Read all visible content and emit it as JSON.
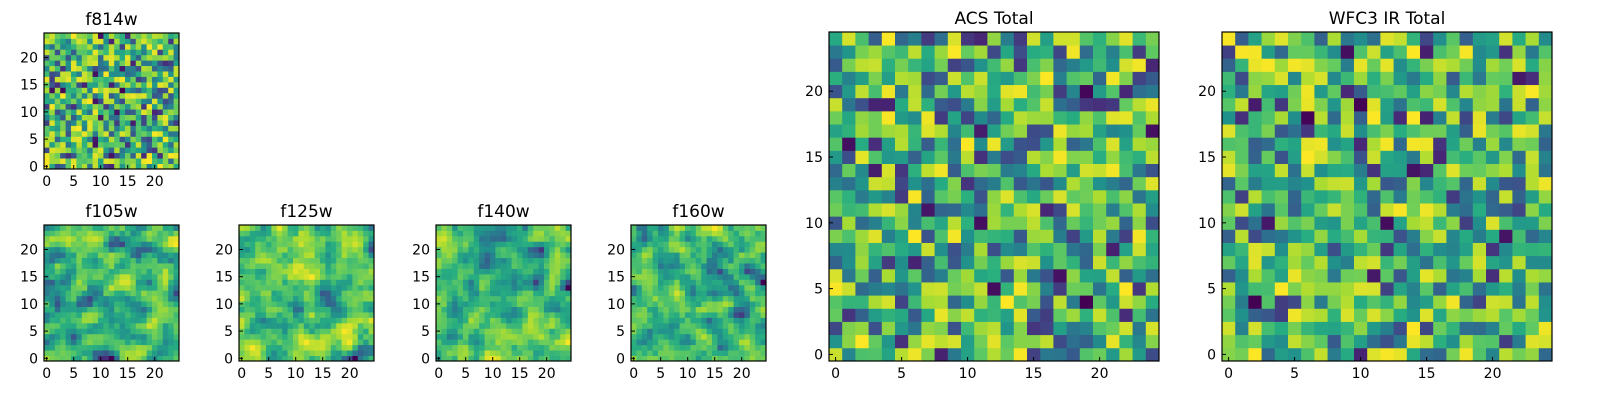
{
  "chart_data": [
    {
      "type": "heatmap",
      "title": "f814w",
      "rows": 25,
      "cols": 25,
      "colormap": "viridis",
      "x_ticks": [
        "0",
        "5",
        "10",
        "15",
        "20"
      ],
      "y_ticks": [
        "0",
        "5",
        "10",
        "15",
        "20"
      ],
      "xlim": [
        -0.5,
        24.5
      ],
      "ylim": [
        -0.5,
        24.5
      ],
      "seed": 11,
      "smoothing": 0,
      "note": "random noise image, values not individually labeled"
    },
    {
      "type": "heatmap",
      "title": "f105w",
      "rows": 25,
      "cols": 25,
      "colormap": "viridis",
      "x_ticks": [
        "0",
        "5",
        "10",
        "15",
        "20"
      ],
      "y_ticks": [
        "0",
        "5",
        "10",
        "15",
        "20"
      ],
      "xlim": [
        -0.5,
        24.5
      ],
      "ylim": [
        -0.5,
        24.5
      ],
      "seed": 23,
      "smoothing": 1
    },
    {
      "type": "heatmap",
      "title": "f125w",
      "rows": 25,
      "cols": 25,
      "colormap": "viridis",
      "x_ticks": [
        "0",
        "5",
        "10",
        "15",
        "20"
      ],
      "y_ticks": [
        "0",
        "5",
        "10",
        "15",
        "20"
      ],
      "xlim": [
        -0.5,
        24.5
      ],
      "ylim": [
        -0.5,
        24.5
      ],
      "seed": 37,
      "smoothing": 1
    },
    {
      "type": "heatmap",
      "title": "f140w",
      "rows": 25,
      "cols": 25,
      "colormap": "viridis",
      "x_ticks": [
        "0",
        "5",
        "10",
        "15",
        "20"
      ],
      "y_ticks": [
        "0",
        "5",
        "10",
        "15",
        "20"
      ],
      "xlim": [
        -0.5,
        24.5
      ],
      "ylim": [
        -0.5,
        24.5
      ],
      "seed": 41,
      "smoothing": 1
    },
    {
      "type": "heatmap",
      "title": "f160w",
      "rows": 25,
      "cols": 25,
      "colormap": "viridis",
      "x_ticks": [
        "0",
        "5",
        "10",
        "15",
        "20"
      ],
      "y_ticks": [
        "0",
        "5",
        "10",
        "15",
        "20"
      ],
      "xlim": [
        -0.5,
        24.5
      ],
      "ylim": [
        -0.5,
        24.5
      ],
      "seed": 53,
      "smoothing": 1
    },
    {
      "type": "heatmap",
      "title": "ACS Total",
      "rows": 25,
      "cols": 25,
      "colormap": "viridis",
      "x_ticks": [
        "0",
        "5",
        "10",
        "15",
        "20"
      ],
      "y_ticks": [
        "0",
        "5",
        "10",
        "15",
        "20"
      ],
      "xlim": [
        -0.5,
        24.5
      ],
      "ylim": [
        -0.5,
        24.5
      ],
      "seed": 67,
      "smoothing": 0
    },
    {
      "type": "heatmap",
      "title": "WFC3 IR Total",
      "rows": 25,
      "cols": 25,
      "colormap": "viridis",
      "x_ticks": [
        "0",
        "5",
        "10",
        "15",
        "20"
      ],
      "y_ticks": [
        "0",
        "5",
        "10",
        "15",
        "20"
      ],
      "xlim": [
        -0.5,
        24.5
      ],
      "ylim": [
        -0.5,
        24.5
      ],
      "seed": 79,
      "smoothing": 0
    }
  ],
  "colors": {
    "viridis_stops": [
      "#440154",
      "#3b528b",
      "#21918c",
      "#5ec962",
      "#fde725"
    ]
  }
}
